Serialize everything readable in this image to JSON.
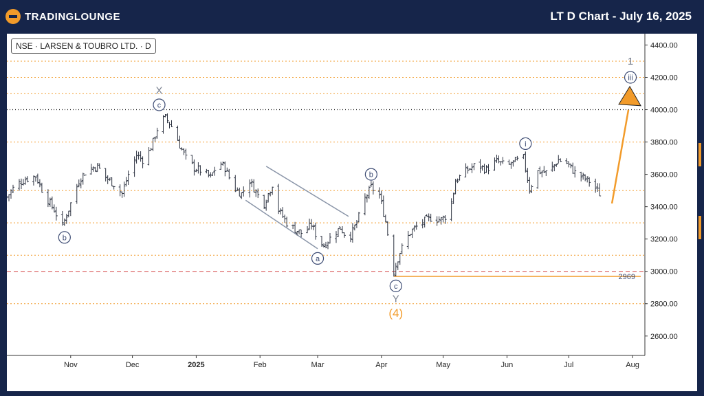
{
  "header": {
    "logo_text": "TRADINGLOUNGE",
    "title": "LT D Chart - July 16, 2025"
  },
  "symbol_label": "NSE · LARSEN & TOUBRO LTD. · D",
  "colors": {
    "background": "#16254a",
    "accent": "#f29b2a",
    "candle": "#2c3240",
    "wave_label": "#3b4a72",
    "guide": "#8a95a8",
    "dashed_red": "#d64a4a"
  },
  "chart_data": {
    "type": "candlestick",
    "y_axis": {
      "min": 2480,
      "max": 4470,
      "ticks": [
        2600,
        2800,
        3000,
        3200,
        3400,
        3600,
        3800,
        4000,
        4200,
        4400
      ],
      "tick_labels": [
        "2600.00",
        "2800.00",
        "3000.00",
        "3200.00",
        "3400.00",
        "3600.00",
        "3800.00",
        "4000.00",
        "4200.00",
        "4400.00"
      ]
    },
    "x_axis": {
      "start": "2024-10-01",
      "end": "2025-08-07",
      "ticks": [
        {
          "date": "2024-11-01",
          "label": "Nov"
        },
        {
          "date": "2024-12-01",
          "label": "Dec"
        },
        {
          "date": "2025-01-01",
          "label": "2025"
        },
        {
          "date": "2025-02-01",
          "label": "Feb"
        },
        {
          "date": "2025-03-01",
          "label": "Mar"
        },
        {
          "date": "2025-04-01",
          "label": "Apr"
        },
        {
          "date": "2025-05-01",
          "label": "May"
        },
        {
          "date": "2025-06-01",
          "label": "Jun"
        },
        {
          "date": "2025-07-01",
          "label": "Jul"
        },
        {
          "date": "2025-08-01",
          "label": "Aug"
        }
      ]
    },
    "orange_dotted_levels": [
      2800,
      3100,
      3300,
      3500,
      3800,
      4100,
      4200,
      4300
    ],
    "black_dotted_level": 4000,
    "red_dashed_level": 3000,
    "support_level": {
      "value": 2969,
      "label": "2969",
      "from": "2025-04-07"
    },
    "price_path": [
      {
        "date": "2024-10-01",
        "p": 3460
      },
      {
        "date": "2024-10-05",
        "p": 3530
      },
      {
        "date": "2024-10-10",
        "p": 3570
      },
      {
        "date": "2024-10-15",
        "p": 3590
      },
      {
        "date": "2024-10-19",
        "p": 3480
      },
      {
        "date": "2024-10-24",
        "p": 3380
      },
      {
        "date": "2024-10-28",
        "p": 3280
      },
      {
        "date": "2024-11-01",
        "p": 3420
      },
      {
        "date": "2024-11-05",
        "p": 3560
      },
      {
        "date": "2024-11-09",
        "p": 3630
      },
      {
        "date": "2024-11-14",
        "p": 3650
      },
      {
        "date": "2024-11-18",
        "p": 3580
      },
      {
        "date": "2024-11-22",
        "p": 3540
      },
      {
        "date": "2024-11-26",
        "p": 3480
      },
      {
        "date": "2024-11-29",
        "p": 3600
      },
      {
        "date": "2024-12-03",
        "p": 3720
      },
      {
        "date": "2024-12-07",
        "p": 3680
      },
      {
        "date": "2024-12-11",
        "p": 3800
      },
      {
        "date": "2024-12-14",
        "p": 3920
      },
      {
        "date": "2024-12-17",
        "p": 3950
      },
      {
        "date": "2024-12-21",
        "p": 3880
      },
      {
        "date": "2024-12-24",
        "p": 3780
      },
      {
        "date": "2024-12-27",
        "p": 3700
      },
      {
        "date": "2024-12-31",
        "p": 3640
      },
      {
        "date": "2025-01-04",
        "p": 3620
      },
      {
        "date": "2025-01-08",
        "p": 3580
      },
      {
        "date": "2025-01-12",
        "p": 3680
      },
      {
        "date": "2025-01-15",
        "p": 3640
      },
      {
        "date": "2025-01-19",
        "p": 3520
      },
      {
        "date": "2025-01-23",
        "p": 3480
      },
      {
        "date": "2025-01-27",
        "p": 3560
      },
      {
        "date": "2025-01-31",
        "p": 3470
      },
      {
        "date": "2025-02-03",
        "p": 3420
      },
      {
        "date": "2025-02-07",
        "p": 3540
      },
      {
        "date": "2025-02-10",
        "p": 3380
      },
      {
        "date": "2025-02-14",
        "p": 3300
      },
      {
        "date": "2025-02-18",
        "p": 3260
      },
      {
        "date": "2025-02-22",
        "p": 3230
      },
      {
        "date": "2025-02-26",
        "p": 3290
      },
      {
        "date": "2025-03-01",
        "p": 3200
      },
      {
        "date": "2025-03-04",
        "p": 3160
      },
      {
        "date": "2025-03-08",
        "p": 3220
      },
      {
        "date": "2025-03-12",
        "p": 3270
      },
      {
        "date": "2025-03-16",
        "p": 3200
      },
      {
        "date": "2025-03-20",
        "p": 3300
      },
      {
        "date": "2025-03-24",
        "p": 3450
      },
      {
        "date": "2025-03-27",
        "p": 3520
      },
      {
        "date": "2025-03-31",
        "p": 3470
      },
      {
        "date": "2025-04-03",
        "p": 3310
      },
      {
        "date": "2025-04-07",
        "p": 3000
      },
      {
        "date": "2025-04-10",
        "p": 3120
      },
      {
        "date": "2025-04-15",
        "p": 3240
      },
      {
        "date": "2025-04-20",
        "p": 3300
      },
      {
        "date": "2025-04-25",
        "p": 3330
      },
      {
        "date": "2025-04-30",
        "p": 3320
      },
      {
        "date": "2025-05-04",
        "p": 3360
      },
      {
        "date": "2025-05-07",
        "p": 3560
      },
      {
        "date": "2025-05-12",
        "p": 3620
      },
      {
        "date": "2025-05-17",
        "p": 3660
      },
      {
        "date": "2025-05-22",
        "p": 3630
      },
      {
        "date": "2025-05-27",
        "p": 3680
      },
      {
        "date": "2025-06-01",
        "p": 3650
      },
      {
        "date": "2025-06-05",
        "p": 3680
      },
      {
        "date": "2025-06-09",
        "p": 3700
      },
      {
        "date": "2025-06-12",
        "p": 3510
      },
      {
        "date": "2025-06-16",
        "p": 3620
      },
      {
        "date": "2025-06-21",
        "p": 3610
      },
      {
        "date": "2025-06-26",
        "p": 3690
      },
      {
        "date": "2025-06-30",
        "p": 3670
      },
      {
        "date": "2025-07-04",
        "p": 3610
      },
      {
        "date": "2025-07-08",
        "p": 3580
      },
      {
        "date": "2025-07-12",
        "p": 3550
      },
      {
        "date": "2025-07-16",
        "p": 3480
      }
    ],
    "wave_labels": [
      {
        "date": "2024-10-29",
        "value": 3210,
        "label": "b",
        "circled": true
      },
      {
        "date": "2024-12-14",
        "value": 4030,
        "label": "c",
        "circled": true
      },
      {
        "date": "2024-12-14",
        "value": 4120,
        "label": "X",
        "circled": false
      },
      {
        "date": "2025-03-01",
        "value": 3080,
        "label": "a",
        "circled": true
      },
      {
        "date": "2025-03-27",
        "value": 3600,
        "label": "b",
        "circled": true
      },
      {
        "date": "2025-04-08",
        "value": 2910,
        "label": "c",
        "circled": true
      },
      {
        "date": "2025-04-08",
        "value": 2830,
        "label": "Y",
        "circled": false
      },
      {
        "date": "2025-04-08",
        "value": 2740,
        "label": "(4)",
        "circled": false,
        "orange": true
      },
      {
        "date": "2025-06-10",
        "value": 3790,
        "label": "i",
        "circled": true
      },
      {
        "date": "2025-07-31",
        "value": 4200,
        "label": "iii",
        "circled": true
      },
      {
        "date": "2025-07-31",
        "value": 4300,
        "label": "1",
        "circled": false
      }
    ],
    "channel_lines": [
      {
        "from": {
          "date": "2025-01-25",
          "value": 3440
        },
        "to": {
          "date": "2025-03-01",
          "value": 3140
        }
      },
      {
        "from": {
          "date": "2025-02-04",
          "value": 3650
        },
        "to": {
          "date": "2025-03-16",
          "value": 3340
        }
      }
    ],
    "projection_arrow": {
      "from": {
        "date": "2025-07-22",
        "value": 3420
      },
      "to": {
        "date": "2025-07-30",
        "value": 4050
      }
    }
  }
}
